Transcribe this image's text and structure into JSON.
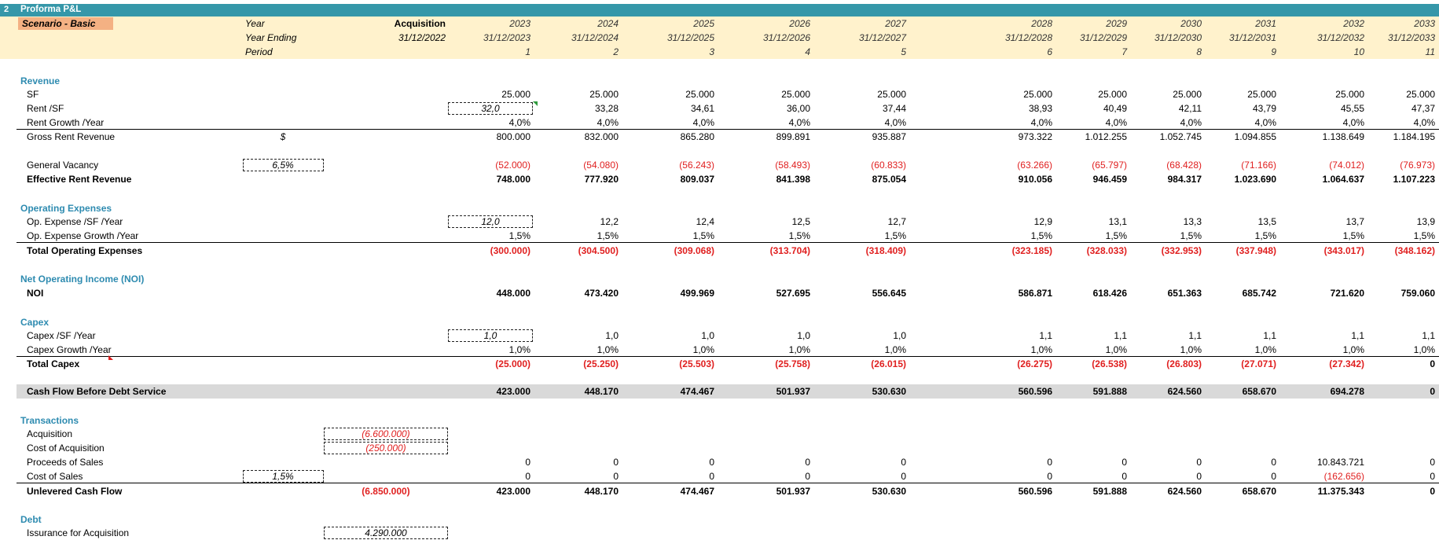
{
  "sheet": {
    "row_number": "2",
    "title": "Proforma P&L",
    "scenario": "Scenario - Basic"
  },
  "header": {
    "year_label": "Year",
    "year_ending_label": "Year Ending",
    "period_label": "Period",
    "acquisition_label": "Acquisition",
    "acquisition_date": "31/12/2022",
    "years": [
      "2023",
      "2024",
      "2025",
      "2026",
      "2027",
      "2028",
      "2029",
      "2030",
      "2031",
      "2032",
      "2033"
    ],
    "year_endings": [
      "31/12/2023",
      "31/12/2024",
      "31/12/2025",
      "31/12/2026",
      "31/12/2027",
      "31/12/2028",
      "31/12/2029",
      "31/12/2030",
      "31/12/2031",
      "31/12/2032",
      "31/12/2033"
    ],
    "periods": [
      "1",
      "2",
      "3",
      "4",
      "5",
      "6",
      "7",
      "8",
      "9",
      "10",
      "11"
    ]
  },
  "sections": {
    "revenue": "Revenue",
    "opex": "Operating Expenses",
    "noi": "Net Operating Income (NOI)",
    "capex": "Capex",
    "transactions": "Transactions",
    "debt": "Debt"
  },
  "rows": {
    "sf": {
      "label": "SF",
      "values": [
        "25.000",
        "25.000",
        "25.000",
        "25.000",
        "25.000",
        "25.000",
        "25.000",
        "25.000",
        "25.000",
        "25.000",
        "25.000"
      ]
    },
    "rent_sf": {
      "label": "Rent /SF",
      "input": "32,0",
      "values": [
        "33,28",
        "34,61",
        "36,00",
        "37,44",
        "38,93",
        "40,49",
        "42,11",
        "43,79",
        "45,55",
        "47,37"
      ]
    },
    "rent_growth": {
      "label": "Rent Growth /Year",
      "values": [
        "4,0%",
        "4,0%",
        "4,0%",
        "4,0%",
        "4,0%",
        "4,0%",
        "4,0%",
        "4,0%",
        "4,0%",
        "4,0%",
        "4,0%"
      ]
    },
    "gross_rent": {
      "label": "Gross Rent Revenue",
      "unit": "$",
      "values": [
        "800.000",
        "832.000",
        "865.280",
        "899.891",
        "935.887",
        "973.322",
        "1.012.255",
        "1.052.745",
        "1.094.855",
        "1.138.649",
        "1.184.195"
      ]
    },
    "vacancy": {
      "label": "General Vacancy",
      "input": "6,5%",
      "values": [
        "(52.000)",
        "(54.080)",
        "(56.243)",
        "(58.493)",
        "(60.833)",
        "(63.266)",
        "(65.797)",
        "(68.428)",
        "(71.166)",
        "(74.012)",
        "(76.973)"
      ]
    },
    "effective_rent": {
      "label": "Effective Rent Revenue",
      "values": [
        "748.000",
        "777.920",
        "809.037",
        "841.398",
        "875.054",
        "910.056",
        "946.459",
        "984.317",
        "1.023.690",
        "1.064.637",
        "1.107.223"
      ]
    },
    "opex_sf": {
      "label": "Op. Expense /SF /Year",
      "input": "12,0",
      "values": [
        "12,2",
        "12,4",
        "12,5",
        "12,7",
        "12,9",
        "13,1",
        "13,3",
        "13,5",
        "13,7",
        "13,9"
      ]
    },
    "opex_growth": {
      "label": "Op. Expense Growth  /Year",
      "values": [
        "1,5%",
        "1,5%",
        "1,5%",
        "1,5%",
        "1,5%",
        "1,5%",
        "1,5%",
        "1,5%",
        "1,5%",
        "1,5%",
        "1,5%"
      ]
    },
    "total_opex": {
      "label": "Total Operating Expenses",
      "values": [
        "(300.000)",
        "(304.500)",
        "(309.068)",
        "(313.704)",
        "(318.409)",
        "(323.185)",
        "(328.033)",
        "(332.953)",
        "(337.948)",
        "(343.017)",
        "(348.162)"
      ]
    },
    "noi": {
      "label": "NOI",
      "values": [
        "448.000",
        "473.420",
        "499.969",
        "527.695",
        "556.645",
        "586.871",
        "618.426",
        "651.363",
        "685.742",
        "721.620",
        "759.060"
      ]
    },
    "capex_sf": {
      "label": "Capex /SF /Year",
      "input": "1,0",
      "values": [
        "1,0",
        "1,0",
        "1,0",
        "1,0",
        "1,1",
        "1,1",
        "1,1",
        "1,1",
        "1,1",
        "1,1"
      ]
    },
    "capex_growth": {
      "label": "Capex Growth  /Year",
      "values": [
        "1,0%",
        "1,0%",
        "1,0%",
        "1,0%",
        "1,0%",
        "1,0%",
        "1,0%",
        "1,0%",
        "1,0%",
        "1,0%",
        "1,0%"
      ]
    },
    "total_capex": {
      "label": "Total Capex",
      "values": [
        "(25.000)",
        "(25.250)",
        "(25.503)",
        "(25.758)",
        "(26.015)",
        "(26.275)",
        "(26.538)",
        "(26.803)",
        "(27.071)",
        "(27.342)",
        "0"
      ]
    },
    "cfbds": {
      "label": "Cash Flow Before Debt Service",
      "values": [
        "423.000",
        "448.170",
        "474.467",
        "501.937",
        "530.630",
        "560.596",
        "591.888",
        "624.560",
        "658.670",
        "694.278",
        "0"
      ]
    },
    "acquisition": {
      "label": "Acquisition",
      "acq": "(6.600.000)"
    },
    "cost_acq": {
      "label": "Cost of Acquisition",
      "acq": "(250.000)"
    },
    "proceeds": {
      "label": "Proceeds of Sales",
      "values": [
        "0",
        "0",
        "0",
        "0",
        "0",
        "0",
        "0",
        "0",
        "0",
        "10.843.721",
        "0"
      ]
    },
    "cost_sales": {
      "label": "Cost of Sales",
      "input": "1,5%",
      "values": [
        "0",
        "0",
        "0",
        "0",
        "0",
        "0",
        "0",
        "0",
        "0",
        "(162.656)",
        "0"
      ]
    },
    "ucf": {
      "label": "Unlevered Cash Flow",
      "acq": "(6.850.000)",
      "values": [
        "423.000",
        "448.170",
        "474.467",
        "501.937",
        "530.630",
        "560.596",
        "591.888",
        "624.560",
        "658.670",
        "11.375.343",
        "0"
      ]
    },
    "issuance": {
      "label": "Issurance for Acquisition",
      "acq": "4.290.000"
    }
  },
  "colors": {
    "teal": "#3597a9",
    "header_fill": "#fff2cc",
    "scenario_fill": "#f4b183",
    "negative": "#e02020",
    "section": "#2e8bb0",
    "subtotal_fill": "#d9d9d9"
  }
}
